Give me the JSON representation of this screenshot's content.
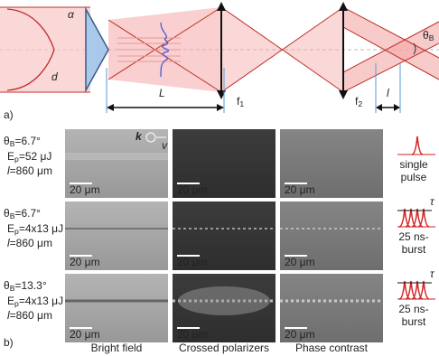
{
  "diagram": {
    "alpha": "α",
    "d": "d",
    "L": "L",
    "f1": {
      "base": "f",
      "sub": "1"
    },
    "f2": {
      "base": "f",
      "sub": "2"
    },
    "l": "l",
    "theta": {
      "base": "θ",
      "sub": "B"
    }
  },
  "panel_labels": [
    "a)",
    "b)"
  ],
  "k": "k",
  "v": "v",
  "rows": [
    {
      "theta": "θ",
      "theta_sub": "B",
      "theta_value": "=6.7°",
      "energy": "E",
      "energy_sub": "p",
      "energy_value": "=52 μJ",
      "length": "l",
      "length_value": "=860 μm",
      "scale_bars": [
        "20 μm",
        "20 μm",
        "20 μm"
      ],
      "pulse": {
        "lines": [
          "single",
          "pulse"
        ]
      }
    },
    {
      "theta": "θ",
      "theta_sub": "B",
      "theta_value": "=6.7°",
      "energy": "E",
      "energy_sub": "p",
      "energy_value": "=4x13 μJ",
      "length": "l",
      "length_value": "=860 μm",
      "scale_bars": [
        "20 μm",
        "20 μm",
        "20 μm"
      ],
      "pulse": {
        "lines": [
          "25 ns-",
          "burst"
        ],
        "tau": "τ"
      }
    },
    {
      "theta": "θ",
      "theta_sub": "B",
      "theta_value": "=13.3°",
      "energy": "E",
      "energy_sub": "p",
      "energy_value": "=4x13 μJ",
      "length": "l",
      "length_value": "=860 μm",
      "scale_bars": [
        "20 μm",
        "20 μm",
        "20 μm"
      ],
      "pulse": {
        "lines": [
          "25 ns-",
          "burst"
        ],
        "tau": "τ"
      }
    }
  ],
  "columns": [
    "Bright field",
    "Crossed polarizers",
    "Phase contrast"
  ]
}
